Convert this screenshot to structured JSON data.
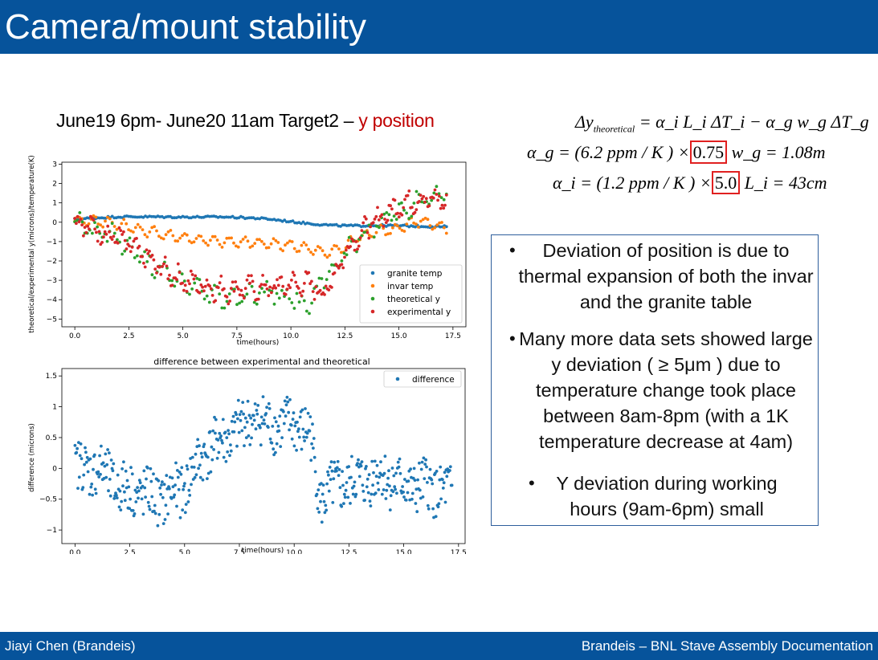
{
  "header": {
    "title": "Camera/mount stability"
  },
  "footer": {
    "left": "Jiayi Chen (Brandeis)",
    "right": "Brandeis – BNL Stave Assembly Documentation"
  },
  "chart_title": {
    "main": "June19 6pm- June20 11am  Target2 – ",
    "highlight": "y position"
  },
  "formulas": {
    "line1": {
      "lhs": "Δy",
      "lhs_sub": "theoretical",
      "rhs": "= α_i L_i ΔT_i − α_g w_g ΔT_g"
    },
    "line2": {
      "prefix": "α_g = (6.2 ppm / K ) ×",
      "boxed": "0.75",
      "suffix": "w_g = 1.08m"
    },
    "line3": {
      "prefix": "α_i = (1.2 ppm / K ) ×",
      "boxed": "5.0",
      "suffix": "L_i = 43cm"
    }
  },
  "bullets": [
    {
      "level": 1,
      "text": "Deviation of position is due to thermal expansion of both the invar and the granite table"
    },
    {
      "level": 1,
      "text": "Many more data sets showed large y deviation ( ≥ 5μm ) due to temperature change took place between 8am-8pm (with a 1K temperature decrease at 4am)"
    },
    {
      "level": 2,
      "text": "Y deviation during working hours (9am-6pm) small"
    }
  ],
  "colors": {
    "header_bg": "#06539b",
    "accent_red": "#c00000",
    "granite": "#1f77b4",
    "invar": "#ff7f0e",
    "theoretical": "#2ca02c",
    "experimental": "#d62728"
  },
  "chart_data": [
    {
      "type": "scatter",
      "title": "",
      "xlabel": "time(hours)",
      "ylabel": "theoretical/experimental y(microns)/temperature(K)",
      "xlim": [
        -0.6,
        18.1
      ],
      "ylim": [
        -5.4,
        3.1
      ],
      "xticks": [
        0.0,
        2.5,
        5.0,
        7.5,
        10.0,
        12.5,
        15.0,
        17.5
      ],
      "yticks": [
        3,
        2,
        1,
        0,
        -1,
        -2,
        -3,
        -4,
        -5
      ],
      "legend_position": "lower-right",
      "series": [
        {
          "name": "granite temp",
          "color": "#1f77b4",
          "x": [
            0,
            1,
            2,
            3,
            4,
            5,
            6,
            7,
            8,
            9,
            10,
            11,
            12,
            13,
            14,
            15,
            16,
            17.2
          ],
          "y": [
            0.15,
            0.2,
            0.25,
            0.28,
            0.3,
            0.3,
            0.28,
            0.25,
            0.2,
            0.15,
            0.05,
            -0.05,
            -0.15,
            -0.2,
            -0.2,
            -0.2,
            -0.2,
            -0.2
          ]
        },
        {
          "name": "invar temp",
          "color": "#ff7f0e",
          "x": [
            0,
            1,
            2,
            3,
            4,
            5,
            6,
            7,
            8,
            9,
            10,
            11,
            11.7,
            12.5,
            13,
            14,
            15,
            16,
            17.2
          ],
          "y": [
            0.1,
            0.05,
            -0.1,
            -0.4,
            -0.6,
            -0.8,
            -0.9,
            -1.0,
            -1.05,
            -1.1,
            -1.2,
            -1.4,
            -1.6,
            -1.3,
            -0.8,
            -0.5,
            -0.3,
            0.1,
            -0.3
          ]
        },
        {
          "name": "theoretical y",
          "color": "#2ca02c",
          "x": [
            0,
            1,
            2,
            3,
            4,
            5,
            6,
            7,
            8,
            9,
            10,
            10.8,
            11.5,
            12.5,
            13,
            14,
            15,
            16,
            17.2
          ],
          "y": [
            0.1,
            -0.4,
            -0.8,
            -1.8,
            -2.6,
            -3.1,
            -3.6,
            -3.9,
            -3.7,
            -3.6,
            -3.9,
            -4.4,
            -3.0,
            -1.6,
            -1.0,
            -0.1,
            0.6,
            1.1,
            1.4
          ]
        },
        {
          "name": "experimental y",
          "color": "#d62728",
          "x": [
            0,
            1,
            2,
            3,
            4,
            5,
            6,
            7,
            8,
            9,
            10,
            11,
            11.5,
            12.5,
            13,
            14,
            15,
            16,
            17.2
          ],
          "y": [
            0.1,
            -0.4,
            -0.8,
            -1.6,
            -2.4,
            -3.0,
            -3.3,
            -3.5,
            -3.4,
            -3.4,
            -3.2,
            -3.2,
            -3.8,
            -1.6,
            -0.8,
            0.1,
            0.9,
            1.2,
            1.1
          ]
        }
      ]
    },
    {
      "type": "scatter",
      "title": "difference between experimental and theoretical",
      "xlabel": "time(hours)",
      "ylabel": "difference (microns)",
      "xlim": [
        -0.6,
        17.8
      ],
      "ylim": [
        -1.22,
        1.62
      ],
      "xticks": [
        0.0,
        2.5,
        5.0,
        7.5,
        10.0,
        12.5,
        15.0,
        17.5
      ],
      "yticks": [
        1.5,
        1.0,
        0.5,
        0.0,
        -0.5,
        -1.0
      ],
      "legend_position": "top-right",
      "series": [
        {
          "name": "difference",
          "color": "#1f77b4",
          "x": [
            0,
            1,
            2,
            3,
            4,
            5,
            6,
            7,
            8,
            9,
            10,
            10.7,
            11.2,
            12,
            13,
            14,
            15,
            16,
            17.2
          ],
          "y": [
            0.0,
            0.0,
            -0.3,
            -0.4,
            -0.5,
            -0.3,
            0.3,
            0.5,
            0.8,
            0.7,
            0.7,
            0.6,
            -0.5,
            -0.3,
            -0.2,
            -0.1,
            -0.3,
            -0.3,
            -0.4
          ]
        }
      ]
    }
  ]
}
